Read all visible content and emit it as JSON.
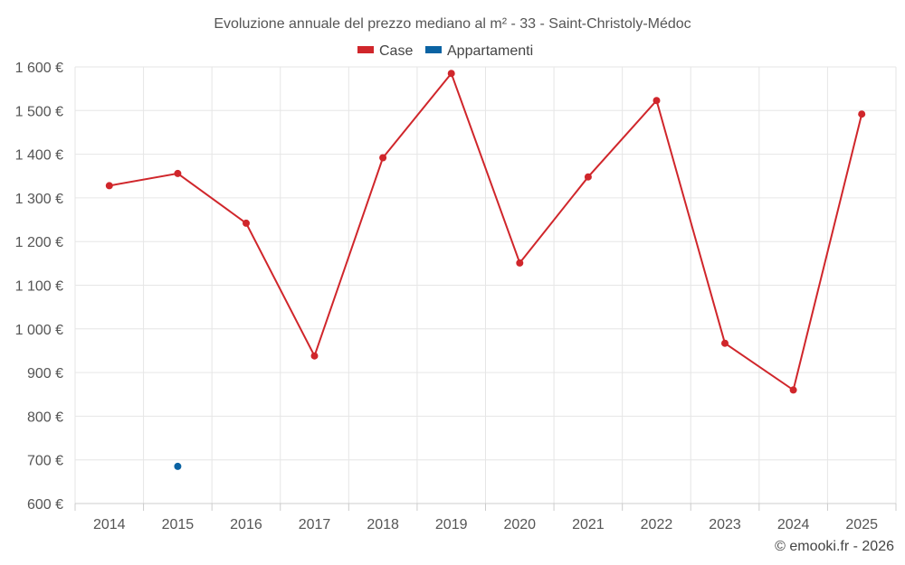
{
  "chart_data": {
    "type": "line",
    "title": "Evoluzione annuale del prezzo mediano al m² - 33 - Saint-Christoly-Médoc",
    "credit": "© emooki.fr - 2026",
    "xlabel": "",
    "ylabel": "",
    "grid": true,
    "legend_position": "top-center",
    "categories": [
      "2014",
      "2015",
      "2016",
      "2017",
      "2018",
      "2019",
      "2020",
      "2021",
      "2022",
      "2023",
      "2024",
      "2025"
    ],
    "ylim": [
      600,
      1600
    ],
    "yticks": [
      600,
      700,
      800,
      900,
      1000,
      1100,
      1200,
      1300,
      1400,
      1500,
      1600
    ],
    "ytick_labels": [
      "600 €",
      "700 €",
      "800 €",
      "900 €",
      "1 000 €",
      "1 100 €",
      "1 200 €",
      "1 300 €",
      "1 400 €",
      "1 500 €",
      "1 600 €"
    ],
    "series": [
      {
        "name": "Case",
        "color": "#d0262b",
        "values": [
          1328,
          1356,
          1242,
          938,
          1392,
          1585,
          1151,
          1348,
          1523,
          967,
          860,
          1492
        ]
      },
      {
        "name": "Appartamenti",
        "color": "#0b63a3",
        "values": [
          null,
          685,
          null,
          null,
          null,
          null,
          null,
          null,
          null,
          null,
          null,
          null
        ]
      }
    ]
  }
}
